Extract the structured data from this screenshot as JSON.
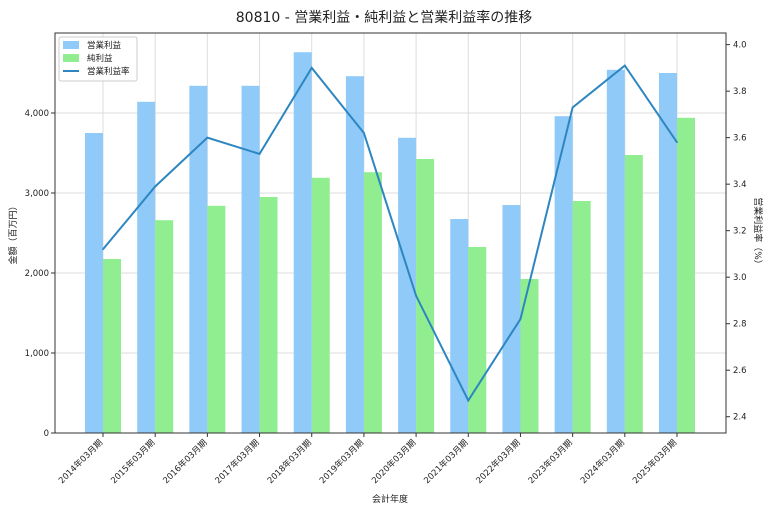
{
  "chart_data": {
    "type": "bar",
    "title": "80810 - 営業利益・純利益と営業利益率の推移",
    "xlabel": "会計年度",
    "ylabel": "金額（百万円）",
    "y2label": "営業利益率（%）",
    "categories": [
      "2014年03月期",
      "2015年03月期",
      "2016年03月期",
      "2017年03月期",
      "2018年03月期",
      "2019年03月期",
      "2020年03月期",
      "2021年03月期",
      "2022年03月期",
      "2023年03月期",
      "2024年03月期",
      "2025年03月期"
    ],
    "series": [
      {
        "name": "営業利益",
        "type": "bar",
        "axis": "left",
        "color": "#90caf9",
        "values": [
          3750,
          4140,
          4340,
          4340,
          4760,
          4460,
          3690,
          2675,
          2850,
          3960,
          4540,
          4500
        ]
      },
      {
        "name": "純利益",
        "type": "bar",
        "axis": "left",
        "color": "#90ee90",
        "values": [
          2175,
          2660,
          2840,
          2950,
          3190,
          3260,
          3425,
          2325,
          1925,
          2900,
          3475,
          3940
        ]
      },
      {
        "name": "営業利益率",
        "type": "line",
        "axis": "right",
        "color": "#2e86c1",
        "values": [
          3.12,
          3.39,
          3.6,
          3.53,
          3.9,
          3.62,
          2.92,
          2.47,
          2.82,
          3.73,
          3.91,
          3.58
        ]
      }
    ],
    "ylim": [
      0,
      5000
    ],
    "y_ticks": [
      0,
      1000,
      2000,
      3000,
      4000
    ],
    "y_tick_labels": [
      "0",
      "1,000",
      "2,000",
      "3,000",
      "4,000"
    ],
    "y2lim": [
      2.33,
      4.05
    ],
    "y2_ticks": [
      2.4,
      2.6,
      2.8,
      3.0,
      3.2,
      3.4,
      3.6,
      3.8,
      4.0
    ],
    "y2_tick_labels": [
      "2.4",
      "2.6",
      "2.8",
      "3.0",
      "3.2",
      "3.4",
      "3.6",
      "3.8",
      "4.0"
    ],
    "grid": true,
    "legend_position": "top-left"
  }
}
